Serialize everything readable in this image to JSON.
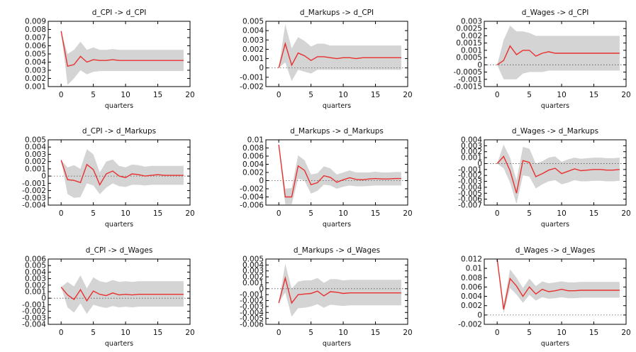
{
  "colors": {
    "band": "#d4d4d4",
    "line": "#e8302f",
    "axis": "#000000",
    "zero_line": "#555555"
  },
  "chart_data": [
    {
      "type": "line",
      "title": "d_CPI -> d_CPI",
      "xlabel": "quarters",
      "ylabel": "",
      "xlim": [
        -2,
        20
      ],
      "ylim": [
        0.001,
        0.009
      ],
      "xticks": [
        "0",
        "5",
        "10",
        "15",
        "20"
      ],
      "yticks": [
        "0.009",
        "0.008",
        "0.007",
        "0.006",
        "0.005",
        "0.004",
        "0.003",
        "0.002",
        "0.001"
      ],
      "x": [
        0,
        1,
        2,
        3,
        4,
        5,
        6,
        7,
        8,
        9,
        10,
        11,
        12,
        13,
        14,
        15,
        16,
        17,
        18,
        19
      ],
      "series": [
        {
          "values": [
            0.0078,
            0.0035,
            0.0037,
            0.0047,
            0.004,
            0.0043,
            0.0042,
            0.0042,
            0.0043,
            0.0042,
            0.0042,
            0.0042,
            0.0042,
            0.0042,
            0.0042,
            0.0042,
            0.0042,
            0.0042,
            0.0042,
            0.0042
          ]
        }
      ],
      "band_lower": [
        0.0078,
        0.0012,
        0.002,
        0.003,
        0.0025,
        0.0028,
        0.0029,
        0.0029,
        0.0029,
        0.0029,
        0.0029,
        0.0029,
        0.0029,
        0.0029,
        0.0029,
        0.0029,
        0.0029,
        0.0029,
        0.0029,
        0.0029
      ],
      "band_upper": [
        0.0078,
        0.005,
        0.0055,
        0.0065,
        0.0055,
        0.0058,
        0.0055,
        0.0055,
        0.0056,
        0.0055,
        0.0055,
        0.0055,
        0.0055,
        0.0055,
        0.0055,
        0.0055,
        0.0055,
        0.0055,
        0.0055,
        0.0055
      ]
    },
    {
      "type": "line",
      "title": "d_Markups -> d_CPI",
      "xlabel": "quarters",
      "ylabel": "",
      "xlim": [
        -2,
        20
      ],
      "ylim": [
        -0.002,
        0.005
      ],
      "xticks": [
        "0",
        "5",
        "10",
        "15",
        "20"
      ],
      "yticks": [
        "0.005",
        "0.004",
        "0.003",
        "0.002",
        "0.001",
        "0",
        "-0.001",
        "-0.002"
      ],
      "x": [
        0,
        1,
        2,
        3,
        4,
        5,
        6,
        7,
        8,
        9,
        10,
        11,
        12,
        13,
        14,
        15,
        16,
        17,
        18,
        19
      ],
      "series": [
        {
          "values": [
            0.0,
            0.0026,
            0.0003,
            0.0016,
            0.0013,
            0.0008,
            0.0012,
            0.0012,
            0.0011,
            0.001,
            0.0011,
            0.0011,
            0.001,
            0.0011,
            0.0011,
            0.0011,
            0.0011,
            0.0011,
            0.0011,
            0.0011
          ]
        }
      ],
      "band_lower": [
        0.0,
        0.0006,
        -0.0014,
        -0.0002,
        -0.0004,
        -0.0006,
        -0.0002,
        -0.0002,
        -0.0002,
        -0.0002,
        -0.0002,
        -0.0002,
        -0.0002,
        -0.0002,
        -0.0002,
        -0.0002,
        -0.0002,
        -0.0002,
        -0.0002,
        -0.0002
      ],
      "band_upper": [
        0.0,
        0.0047,
        0.0021,
        0.0033,
        0.0029,
        0.0023,
        0.0026,
        0.0026,
        0.0024,
        0.0024,
        0.0024,
        0.0024,
        0.0024,
        0.0024,
        0.0024,
        0.0024,
        0.0024,
        0.0024,
        0.0024,
        0.0024
      ]
    },
    {
      "type": "line",
      "title": "d_Wages -> d_CPI",
      "xlabel": "quarters",
      "ylabel": "",
      "xlim": [
        -2,
        20
      ],
      "ylim": [
        -0.0015,
        0.003
      ],
      "xticks": [
        "0",
        "5",
        "10",
        "15",
        "20"
      ],
      "yticks": [
        "0.003",
        "0.0025",
        "0.002",
        "0.0015",
        "0.001",
        "0.0005",
        "0",
        "-0.0005",
        "-0.001",
        "-0.0015"
      ],
      "x": [
        0,
        1,
        2,
        3,
        4,
        5,
        6,
        7,
        8,
        9,
        10,
        11,
        12,
        13,
        14,
        15,
        16,
        17,
        18,
        19
      ],
      "series": [
        {
          "values": [
            0.0,
            0.0003,
            0.0013,
            0.0007,
            0.001,
            0.001,
            0.0006,
            0.0008,
            0.0009,
            0.0008,
            0.0008,
            0.0008,
            0.0008,
            0.0008,
            0.0008,
            0.0008,
            0.0008,
            0.0008,
            0.0008,
            0.0008
          ]
        }
      ],
      "band_lower": [
        0.0,
        -0.001,
        -0.001,
        -0.001,
        -0.0006,
        -0.0005,
        -0.0005,
        -0.0005,
        -0.0004,
        -0.0004,
        -0.0004,
        -0.0004,
        -0.0004,
        -0.0004,
        -0.0004,
        -0.0004,
        -0.0004,
        -0.0004,
        -0.0004,
        -0.0004
      ],
      "band_upper": [
        0.0,
        0.0017,
        0.0027,
        0.0023,
        0.0023,
        0.0022,
        0.002,
        0.002,
        0.002,
        0.002,
        0.002,
        0.002,
        0.002,
        0.002,
        0.002,
        0.002,
        0.002,
        0.002,
        0.002,
        0.002
      ]
    },
    {
      "type": "line",
      "title": "d_CPI -> d_Markups",
      "xlabel": "quarters",
      "ylabel": "",
      "xlim": [
        -2,
        20
      ],
      "ylim": [
        -0.004,
        0.005
      ],
      "xticks": [
        "0",
        "5",
        "10",
        "15",
        "20"
      ],
      "yticks": [
        "0.005",
        "0.004",
        "0.003",
        "0.002",
        "0.001",
        "0",
        "-0.001",
        "-0.002",
        "-0.003",
        "-0.004"
      ],
      "x": [
        0,
        1,
        2,
        3,
        4,
        5,
        6,
        7,
        8,
        9,
        10,
        11,
        12,
        13,
        14,
        15,
        16,
        17,
        18,
        19
      ],
      "series": [
        {
          "values": [
            0.0022,
            -0.0005,
            -0.0006,
            -0.0009,
            0.0016,
            0.0009,
            -0.0012,
            0.0003,
            0.0007,
            0.0,
            -0.0002,
            0.0003,
            0.0002,
            0.0,
            0.0001,
            0.0002,
            0.0001,
            0.0001,
            0.0001,
            0.0001
          ]
        }
      ],
      "band_lower": [
        0.0022,
        -0.0025,
        -0.003,
        -0.0029,
        -0.001,
        -0.0013,
        -0.0025,
        -0.0016,
        -0.001,
        -0.0014,
        -0.0015,
        -0.0012,
        -0.0012,
        -0.0013,
        -0.0012,
        -0.0012,
        -0.0012,
        -0.0012,
        -0.0012,
        -0.0012
      ],
      "band_upper": [
        0.0022,
        0.0012,
        0.0015,
        0.001,
        0.0037,
        0.003,
        0.0005,
        0.002,
        0.0023,
        0.0014,
        0.0012,
        0.0016,
        0.0015,
        0.0013,
        0.0014,
        0.0014,
        0.0014,
        0.0014,
        0.0014,
        0.0014
      ]
    },
    {
      "type": "line",
      "title": "d_Markups -> d_Markups",
      "xlabel": "quarters",
      "ylabel": "",
      "xlim": [
        -2,
        20
      ],
      "ylim": [
        -0.006,
        0.01
      ],
      "xticks": [
        "0",
        "5",
        "10",
        "15",
        "20"
      ],
      "yticks": [
        "0.01",
        "0.008",
        "0.006",
        "0.004",
        "0.002",
        "0",
        "-0.002",
        "-0.004",
        "-0.006"
      ],
      "x": [
        0,
        1,
        2,
        3,
        4,
        5,
        6,
        7,
        8,
        9,
        10,
        11,
        12,
        13,
        14,
        15,
        16,
        17,
        18,
        19
      ],
      "series": [
        {
          "values": [
            0.0088,
            -0.004,
            -0.004,
            0.0036,
            0.0025,
            -0.001,
            -0.0005,
            0.0012,
            0.0008,
            -0.0004,
            0.0002,
            0.0007,
            0.0003,
            0.0002,
            0.0004,
            0.0005,
            0.0004,
            0.0004,
            0.0005,
            0.0005
          ]
        }
      ],
      "band_lower": [
        0.0088,
        -0.0058,
        -0.0058,
        0.0005,
        0.0,
        -0.0032,
        -0.0025,
        -0.001,
        -0.0012,
        -0.002,
        -0.0015,
        -0.0012,
        -0.0014,
        -0.0014,
        -0.0013,
        -0.0012,
        -0.0012,
        -0.0012,
        -0.0012,
        -0.0012
      ],
      "band_upper": [
        0.0088,
        -0.002,
        -0.0018,
        0.0062,
        0.005,
        0.0015,
        0.0018,
        0.0035,
        0.003,
        0.0015,
        0.002,
        0.0025,
        0.002,
        0.002,
        0.002,
        0.0022,
        0.002,
        0.002,
        0.0021,
        0.0021
      ]
    },
    {
      "type": "line",
      "title": "d_Wages -> d_Markups",
      "xlabel": "quarters",
      "ylabel": "",
      "xlim": [
        -2,
        20
      ],
      "ylim": [
        -0.007,
        0.004
      ],
      "xticks": [
        "0",
        "5",
        "10",
        "15",
        "20"
      ],
      "yticks": [
        "0.004",
        "0.003",
        "0.002",
        "0.001",
        "0",
        "-0.001",
        "-0.002",
        "-0.003",
        "-0.004",
        "-0.005",
        "-0.006",
        "-0.007"
      ],
      "x": [
        0,
        1,
        2,
        3,
        4,
        5,
        6,
        7,
        8,
        9,
        10,
        11,
        12,
        13,
        14,
        15,
        16,
        17,
        18,
        19
      ],
      "series": [
        {
          "values": [
            0.0,
            0.0012,
            -0.0012,
            -0.005,
            0.0005,
            0.0002,
            -0.0022,
            -0.0017,
            -0.0011,
            -0.0008,
            -0.0017,
            -0.0013,
            -0.0009,
            -0.0012,
            -0.0011,
            -0.001,
            -0.001,
            -0.0011,
            -0.0011,
            -0.001
          ]
        }
      ],
      "band_lower": [
        0.0,
        -0.0008,
        -0.0032,
        -0.0068,
        -0.002,
        -0.0022,
        -0.0042,
        -0.0035,
        -0.003,
        -0.0028,
        -0.0035,
        -0.0032,
        -0.0028,
        -0.003,
        -0.003,
        -0.0029,
        -0.0029,
        -0.003,
        -0.003,
        -0.0029
      ],
      "band_upper": [
        0.0,
        0.0032,
        0.001,
        -0.0028,
        0.0028,
        0.0025,
        0.0,
        0.0004,
        0.001,
        0.0012,
        0.0003,
        0.0007,
        0.001,
        0.0008,
        0.0009,
        0.001,
        0.001,
        0.0009,
        0.0009,
        0.001
      ]
    },
    {
      "type": "line",
      "title": "d_CPI -> d_Wages",
      "xlabel": "quarters",
      "ylabel": "",
      "xlim": [
        -2,
        20
      ],
      "ylim": [
        -0.004,
        0.006
      ],
      "xticks": [
        "0",
        "5",
        "10",
        "15",
        "20"
      ],
      "yticks": [
        "0.006",
        "0.005",
        "0.004",
        "0.003",
        "0.002",
        "0.001",
        "0",
        "-0.001",
        "-0.002",
        "-0.003",
        "-0.004"
      ],
      "x": [
        0,
        1,
        2,
        3,
        4,
        5,
        6,
        7,
        8,
        9,
        10,
        11,
        12,
        13,
        14,
        15,
        16,
        17,
        18,
        19
      ],
      "series": [
        {
          "values": [
            0.0017,
            0.0005,
            -0.0002,
            0.0013,
            -0.0004,
            0.0011,
            0.0006,
            0.0004,
            0.0008,
            0.0005,
            0.0006,
            0.0005,
            0.0006,
            0.0006,
            0.0006,
            0.0006,
            0.0006,
            0.0006,
            0.0006,
            0.0006
          ]
        }
      ],
      "band_lower": [
        0.0017,
        -0.0014,
        -0.0022,
        -0.0008,
        -0.0024,
        -0.001,
        -0.0013,
        -0.0015,
        -0.0012,
        -0.0014,
        -0.0013,
        -0.0014,
        -0.0013,
        -0.0013,
        -0.0013,
        -0.0013,
        -0.0013,
        -0.0013,
        -0.0013,
        -0.0013
      ],
      "band_upper": [
        0.0017,
        0.0025,
        0.0018,
        0.0035,
        0.0015,
        0.0032,
        0.0026,
        0.0024,
        0.0028,
        0.0025,
        0.0026,
        0.0025,
        0.0026,
        0.0026,
        0.0026,
        0.0026,
        0.0026,
        0.0026,
        0.0026,
        0.0026
      ]
    },
    {
      "type": "line",
      "title": "d_Markups -> d_Wages",
      "xlabel": "quarters",
      "ylabel": "",
      "xlim": [
        -2,
        20
      ],
      "ylim": [
        -0.006,
        0.005
      ],
      "xticks": [
        "0",
        "5",
        "10",
        "15",
        "20"
      ],
      "yticks": [
        "0.005",
        "0.004",
        "0.003",
        "0.002",
        "0.001",
        "0",
        "-0.001",
        "-0.002",
        "-0.003",
        "-0.004",
        "-0.005",
        "-0.006"
      ],
      "x": [
        0,
        1,
        2,
        3,
        4,
        5,
        6,
        7,
        8,
        9,
        10,
        11,
        12,
        13,
        14,
        15,
        16,
        17,
        18,
        19
      ],
      "series": [
        {
          "values": [
            -0.0024,
            0.0018,
            -0.0024,
            -0.001,
            -0.0009,
            -0.0008,
            -0.0004,
            -0.0012,
            -0.0005,
            -0.0006,
            -0.0008,
            -0.0007,
            -0.0007,
            -0.0007,
            -0.0007,
            -0.0007,
            -0.0007,
            -0.0007,
            -0.0007,
            -0.0007
          ]
        }
      ],
      "band_lower": [
        -0.0024,
        -0.0006,
        -0.0047,
        -0.0033,
        -0.0032,
        -0.003,
        -0.0026,
        -0.0032,
        -0.0027,
        -0.0028,
        -0.0029,
        -0.0028,
        -0.0028,
        -0.0028,
        -0.0028,
        -0.0028,
        -0.0028,
        -0.0028,
        -0.0028,
        -0.0028
      ],
      "band_upper": [
        -0.0024,
        0.0042,
        0.0,
        0.0012,
        0.0014,
        0.0014,
        0.0018,
        0.001,
        0.0016,
        0.0016,
        0.0014,
        0.0015,
        0.0015,
        0.0015,
        0.0015,
        0.0015,
        0.0015,
        0.0015,
        0.0015,
        0.0015
      ]
    },
    {
      "type": "line",
      "title": "d_Wages -> d_Wages",
      "xlabel": "quarters",
      "ylabel": "",
      "xlim": [
        -2,
        20
      ],
      "ylim": [
        -0.002,
        0.012
      ],
      "xticks": [
        "0",
        "5",
        "10",
        "15",
        "20"
      ],
      "yticks": [
        "0.012",
        "0.01",
        "0.008",
        "0.006",
        "0.004",
        "0.002",
        "0",
        "-0.002"
      ],
      "x": [
        0,
        1,
        2,
        3,
        4,
        5,
        6,
        7,
        8,
        9,
        10,
        11,
        12,
        13,
        14,
        15,
        16,
        17,
        18,
        19
      ],
      "series": [
        {
          "values": [
            0.012,
            0.0012,
            0.0078,
            0.0062,
            0.004,
            0.006,
            0.0045,
            0.0055,
            0.005,
            0.0052,
            0.0055,
            0.0052,
            0.0052,
            0.0053,
            0.0053,
            0.0053,
            0.0053,
            0.0053,
            0.0053,
            0.0053
          ]
        }
      ],
      "band_lower": [
        0.012,
        0.0003,
        0.0058,
        0.0044,
        0.0026,
        0.0043,
        0.0031,
        0.0038,
        0.0035,
        0.0036,
        0.0038,
        0.0036,
        0.0036,
        0.0037,
        0.0037,
        0.0037,
        0.0037,
        0.0037,
        0.0037,
        0.0037
      ],
      "band_upper": [
        0.012,
        0.0022,
        0.0098,
        0.008,
        0.0058,
        0.0078,
        0.0062,
        0.0072,
        0.0068,
        0.007,
        0.0072,
        0.007,
        0.007,
        0.0071,
        0.0071,
        0.0071,
        0.0071,
        0.0071,
        0.0071,
        0.0071
      ]
    }
  ]
}
